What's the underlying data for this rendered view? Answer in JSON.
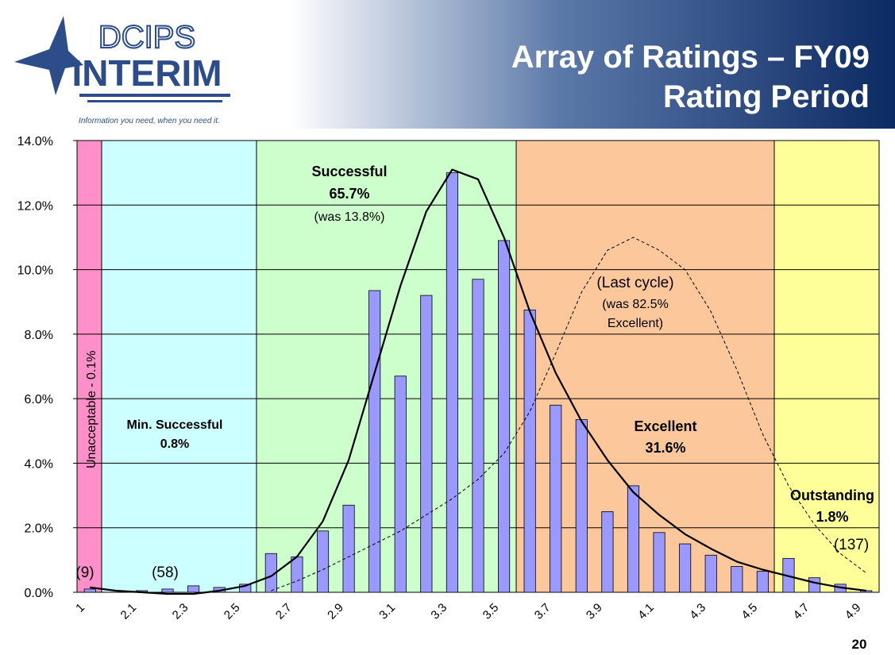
{
  "header": {
    "logo_top": "DCIPS",
    "logo_main": "INTERIM",
    "tagline": "Information you need, when you need it.",
    "title_line1": "Array of Ratings – FY09",
    "title_line2": "Rating Period",
    "page_number": "20"
  },
  "chart_data": {
    "type": "bar",
    "categories": [
      "1",
      null,
      "2.1",
      null,
      "2.3",
      null,
      "2.5",
      null,
      "2.7",
      null,
      "2.9",
      null,
      "3.1",
      null,
      "3.3",
      null,
      "3.5",
      null,
      "3.7",
      null,
      "3.9",
      null,
      "4.1",
      null,
      "4.3",
      null,
      "4.5",
      null,
      "4.7",
      null,
      "4.9"
    ],
    "values": [
      0.1,
      0,
      0.05,
      0.1,
      0.2,
      0.15,
      0.25,
      1.2,
      1.1,
      1.9,
      2.7,
      9.35,
      6.7,
      9.2,
      13.0,
      9.7,
      10.9,
      8.75,
      5.8,
      5.35,
      2.5,
      3.3,
      1.85,
      1.5,
      1.15,
      0.8,
      0.65,
      1.05,
      0.45,
      0.25,
      0.05
    ],
    "color": "#9999ff",
    "curves": [
      {
        "color": "#000000",
        "dashed": false,
        "values": [
          0.15,
          0.05,
          0,
          -0.05,
          -0.05,
          0.05,
          0.2,
          0.5,
          1.1,
          2.2,
          4.1,
          6.8,
          9.5,
          11.8,
          13.1,
          12.8,
          11.0,
          8.7,
          6.8,
          5.3,
          4.1,
          3.1,
          2.4,
          1.8,
          1.35,
          0.95,
          0.7,
          0.5,
          0.3,
          0.15,
          0.05
        ]
      },
      {
        "color": "#000000",
        "dashed": true,
        "values": [
          null,
          null,
          null,
          null,
          null,
          null,
          null,
          0.05,
          0.35,
          0.7,
          1.1,
          1.5,
          1.9,
          2.4,
          2.9,
          3.5,
          4.3,
          5.6,
          7.4,
          9.3,
          10.6,
          11.0,
          10.6,
          10.0,
          8.7,
          6.9,
          4.9,
          3.3,
          2.1,
          1.2,
          0.6
        ]
      }
    ],
    "ylim": [
      0,
      14
    ],
    "yticks": [
      {
        "value": 0,
        "label": "0.0%"
      },
      {
        "value": 2,
        "label": "2.0%"
      },
      {
        "value": 4,
        "label": "4.0%"
      },
      {
        "value": 6,
        "label": "6.0%"
      },
      {
        "value": 8,
        "label": "8.0%"
      },
      {
        "value": 10,
        "label": "10.0%"
      },
      {
        "value": 12,
        "label": "12.0%"
      },
      {
        "value": 14,
        "label": "14.0%"
      }
    ],
    "grid": true,
    "annotations": {
      "unacceptable": "Unacceptable - 0.1%",
      "min_successful": "Min. Successful",
      "min_successful_pct": "0.8%",
      "successful": "Successful",
      "successful_pct": "65.7%",
      "successful_was": "(was 13.8%)",
      "last_cycle": "(Last cycle)",
      "last_cycle_was": "(was 82.5%",
      "last_cycle_excellent": "Excellent)",
      "excellent": "Excellent",
      "excellent_pct": "31.6%",
      "outstanding": "Outstanding",
      "outstanding_pct": "1.8%",
      "count_9": "(9)",
      "count_58": "(58)",
      "count_137": "(137)"
    }
  }
}
